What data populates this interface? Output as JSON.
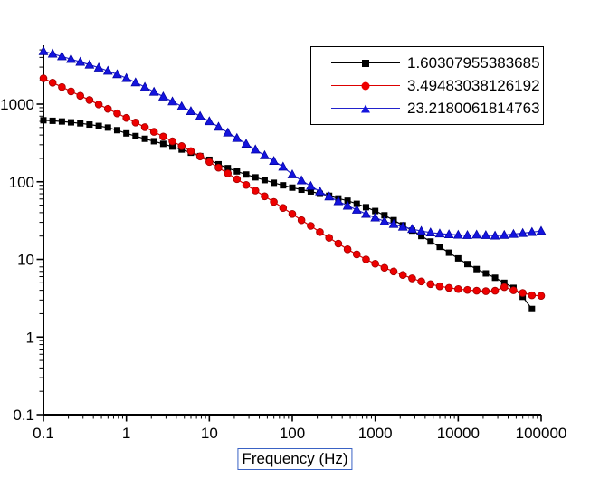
{
  "figure": {
    "background": "#ffffff"
  },
  "chart_data": {
    "type": "scatter",
    "subtype": "connected markers, log-log axes",
    "title": "",
    "xlabel": "Frequency (Hz)",
    "ylabel": "",
    "x_scale": "log",
    "y_scale": "log",
    "x_range": [
      0.1,
      100000
    ],
    "y_range_displayed": [
      0.1,
      5700
    ],
    "grid": false,
    "axis_color": "#000000",
    "xlabel_box_color": "#3a62c4",
    "x_ticks": {
      "values": [
        0.1,
        1,
        10,
        100,
        1000,
        10000,
        100000
      ],
      "labels": [
        "0.1",
        "1",
        "10",
        "100",
        "1000",
        "10000",
        "100000"
      ]
    },
    "y_ticks": {
      "values": [
        1000,
        100,
        10,
        1,
        0.1
      ],
      "labels": [
        "1000",
        "100",
        "10",
        "1",
        "0.1"
      ]
    },
    "legend": {
      "position": "top-right",
      "border_color": "#000000",
      "background": "#ffffff"
    },
    "series": [
      {
        "name": "1.60307955383685",
        "marker": "square",
        "color": "#000000",
        "line_color": "#000000",
        "edge_color": "#000000",
        "points": [
          [
            0.1,
            620
          ],
          [
            0.129,
            610
          ],
          [
            0.167,
            598
          ],
          [
            0.215,
            583
          ],
          [
            0.278,
            566
          ],
          [
            0.359,
            546
          ],
          [
            0.464,
            524
          ],
          [
            0.599,
            499
          ],
          [
            0.774,
            462
          ],
          [
            1,
            420
          ],
          [
            1.29,
            388
          ],
          [
            1.67,
            358
          ],
          [
            2.15,
            333
          ],
          [
            2.78,
            308
          ],
          [
            3.59,
            284
          ],
          [
            4.64,
            260
          ],
          [
            5.99,
            237
          ],
          [
            7.74,
            214
          ],
          [
            10,
            192
          ],
          [
            12.9,
            168
          ],
          [
            16.7,
            150
          ],
          [
            21.5,
            136
          ],
          [
            27.8,
            124
          ],
          [
            35.9,
            114
          ],
          [
            46.4,
            105
          ],
          [
            59.9,
            97
          ],
          [
            77.4,
            90
          ],
          [
            100,
            84
          ],
          [
            129,
            79
          ],
          [
            167,
            75
          ],
          [
            215,
            70
          ],
          [
            278,
            66
          ],
          [
            359,
            61
          ],
          [
            464,
            57
          ],
          [
            599,
            52
          ],
          [
            774,
            47
          ],
          [
            1000,
            42
          ],
          [
            1292,
            37
          ],
          [
            1668,
            32
          ],
          [
            2154,
            27.5
          ],
          [
            2783,
            23.5
          ],
          [
            3594,
            20
          ],
          [
            4642,
            17
          ],
          [
            5995,
            14.5
          ],
          [
            7743,
            12.2
          ],
          [
            10000,
            10.3
          ],
          [
            12915,
            8.7
          ],
          [
            16681,
            7.5
          ],
          [
            21544,
            6.6
          ],
          [
            27826,
            5.8
          ],
          [
            35938,
            5.0
          ],
          [
            46416,
            4.3
          ],
          [
            59948,
            3.3
          ],
          [
            77426,
            2.3
          ]
        ]
      },
      {
        "name": "3.49483038126192",
        "marker": "circle",
        "color": "#ee0000",
        "line_color": "#dd0000",
        "edge_color": "#a00000",
        "points": [
          [
            0.1,
            2150
          ],
          [
            0.129,
            1890
          ],
          [
            0.167,
            1660
          ],
          [
            0.215,
            1460
          ],
          [
            0.278,
            1280
          ],
          [
            0.359,
            1130
          ],
          [
            0.464,
            990
          ],
          [
            0.599,
            870
          ],
          [
            0.774,
            760
          ],
          [
            1,
            665
          ],
          [
            1.29,
            580
          ],
          [
            1.67,
            505
          ],
          [
            2.15,
            440
          ],
          [
            2.78,
            382
          ],
          [
            3.59,
            332
          ],
          [
            4.64,
            288
          ],
          [
            5.99,
            248
          ],
          [
            7.74,
            212
          ],
          [
            10,
            180
          ],
          [
            12.9,
            152
          ],
          [
            16.7,
            128
          ],
          [
            21.5,
            108
          ],
          [
            27.8,
            91
          ],
          [
            35.9,
            77
          ],
          [
            46.4,
            65
          ],
          [
            59.9,
            55
          ],
          [
            77.4,
            46
          ],
          [
            100,
            38.5
          ],
          [
            129,
            32
          ],
          [
            167,
            27
          ],
          [
            215,
            22.5
          ],
          [
            278,
            19
          ],
          [
            359,
            16
          ],
          [
            464,
            13.5
          ],
          [
            599,
            11.6
          ],
          [
            774,
            10
          ],
          [
            1000,
            8.8
          ],
          [
            1292,
            7.8
          ],
          [
            1668,
            7.0
          ],
          [
            2154,
            6.3
          ],
          [
            2783,
            5.7
          ],
          [
            3594,
            5.2
          ],
          [
            4642,
            4.8
          ],
          [
            5995,
            4.5
          ],
          [
            7743,
            4.3
          ],
          [
            10000,
            4.15
          ],
          [
            12915,
            4.05
          ],
          [
            16681,
            3.95
          ],
          [
            21544,
            3.9
          ],
          [
            27826,
            3.95
          ],
          [
            35938,
            4.4
          ],
          [
            46416,
            4.0
          ],
          [
            59948,
            3.7
          ],
          [
            77426,
            3.45
          ],
          [
            100000,
            3.4
          ]
        ]
      },
      {
        "name": "23.2180061814763",
        "marker": "triangle-up",
        "color": "#1414dd",
        "line_color": "#2222cc",
        "edge_color": "#0000a0",
        "points": [
          [
            0.1,
            4800
          ],
          [
            0.129,
            4450
          ],
          [
            0.167,
            4120
          ],
          [
            0.215,
            3800
          ],
          [
            0.278,
            3500
          ],
          [
            0.359,
            3220
          ],
          [
            0.464,
            2950
          ],
          [
            0.599,
            2680
          ],
          [
            0.774,
            2420
          ],
          [
            1,
            2160
          ],
          [
            1.29,
            1900
          ],
          [
            1.67,
            1660
          ],
          [
            2.15,
            1440
          ],
          [
            2.78,
            1250
          ],
          [
            3.59,
            1080
          ],
          [
            4.64,
            935
          ],
          [
            5.99,
            810
          ],
          [
            7.74,
            700
          ],
          [
            10,
            600
          ],
          [
            12.9,
            510
          ],
          [
            16.7,
            430
          ],
          [
            21.5,
            365
          ],
          [
            27.8,
            308
          ],
          [
            35.9,
            260
          ],
          [
            46.4,
            219
          ],
          [
            59.9,
            185
          ],
          [
            77.4,
            156
          ],
          [
            100,
            124
          ],
          [
            129,
            104
          ],
          [
            167,
            88
          ],
          [
            215,
            75
          ],
          [
            278,
            64.5
          ],
          [
            359,
            56
          ],
          [
            464,
            49
          ],
          [
            599,
            43.5
          ],
          [
            774,
            38.5
          ],
          [
            1000,
            34.5
          ],
          [
            1292,
            31
          ],
          [
            1668,
            28.5
          ],
          [
            2154,
            26.3
          ],
          [
            2783,
            24.6
          ],
          [
            3594,
            23.2
          ],
          [
            4642,
            22.2
          ],
          [
            5995,
            21.5
          ],
          [
            7743,
            21.0
          ],
          [
            10000,
            20.7
          ],
          [
            12915,
            20.5
          ],
          [
            16681,
            20.8
          ],
          [
            21544,
            20.5
          ],
          [
            27826,
            20.2
          ],
          [
            35938,
            20.6
          ],
          [
            46416,
            21.2
          ],
          [
            59948,
            21.8
          ],
          [
            77426,
            22.5
          ],
          [
            100000,
            23.2
          ]
        ]
      }
    ]
  }
}
